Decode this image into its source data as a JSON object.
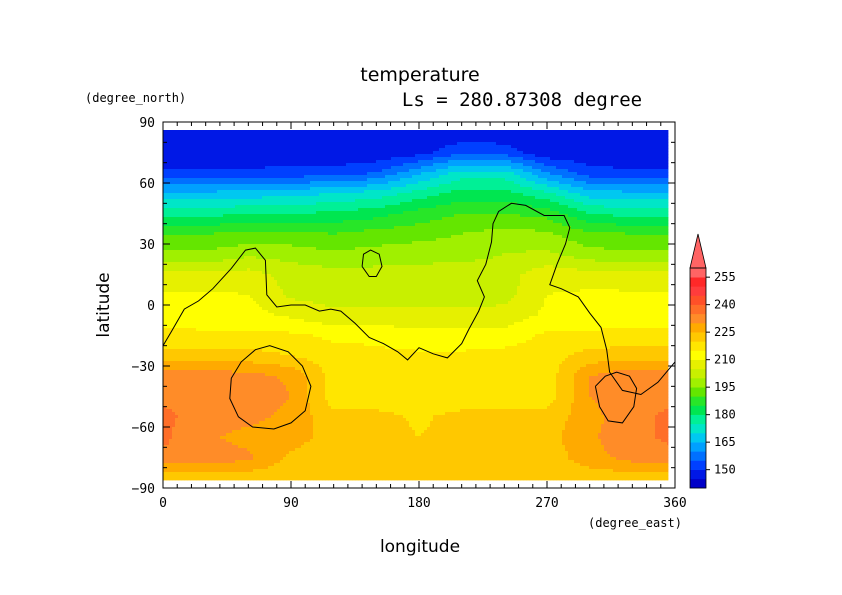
{
  "chart_data": {
    "type": "heatmap",
    "title": "temperature",
    "subtitle": "Ls = 280.87308 degree",
    "xlabel": "longitude",
    "ylabel": "latitude",
    "x_unit": "(degree_east)",
    "y_unit": "(degree_north)",
    "xlim": [
      0,
      360
    ],
    "ylim": [
      -90,
      90
    ],
    "x_ticks": [
      "0",
      "90",
      "180",
      "270",
      "360"
    ],
    "y_ticks": [
      "90",
      "60",
      "30",
      "0",
      "−30",
      "−60",
      "−90"
    ],
    "colorbar": {
      "labels": [
        "255",
        "240",
        "225",
        "210",
        "195",
        "180",
        "165",
        "150"
      ],
      "levels": [
        140,
        145,
        150,
        155,
        160,
        165,
        170,
        175,
        180,
        185,
        190,
        195,
        200,
        205,
        210,
        215,
        220,
        225,
        230,
        235,
        240,
        245,
        250,
        255,
        260
      ],
      "colors": [
        "#0000c8",
        "#0018e6",
        "#0040ff",
        "#0070ff",
        "#00a0ff",
        "#00c8f0",
        "#00e6c8",
        "#00f096",
        "#00e650",
        "#28e628",
        "#64e600",
        "#a0f000",
        "#c8f000",
        "#e6f000",
        "#ffff00",
        "#ffe600",
        "#ffc800",
        "#ffaa00",
        "#ff8c28",
        "#ff6e28",
        "#ff5028",
        "#ff3c3c",
        "#ff2828",
        "#ff6464"
      ]
    },
    "data_lon": [
      0,
      30,
      60,
      90,
      120,
      150,
      180,
      210,
      240,
      270,
      300,
      330,
      360
    ],
    "data_lat": [
      -85,
      -75,
      -65,
      -55,
      -45,
      -35,
      -25,
      -15,
      -5,
      5,
      15,
      25,
      35,
      45,
      55,
      65,
      75,
      85
    ],
    "values": [
      [
        222,
        222,
        222,
        222,
        222,
        222,
        222,
        222,
        222,
        222,
        222,
        222,
        222
      ],
      [
        234,
        234,
        231,
        224,
        222,
        222,
        222,
        222,
        222,
        222,
        228,
        232,
        234
      ],
      [
        236,
        231,
        228,
        227,
        223,
        222,
        220,
        222,
        222,
        223,
        229,
        234,
        236
      ],
      [
        236,
        233,
        232,
        228,
        222,
        222,
        219,
        222,
        222,
        222,
        228,
        234,
        236
      ],
      [
        234,
        234,
        234,
        230,
        217,
        216,
        216,
        216,
        216,
        217,
        230,
        234,
        234
      ],
      [
        233,
        233,
        232,
        229,
        218,
        216,
        216,
        216,
        216,
        217,
        230,
        234,
        233
      ],
      [
        222,
        222,
        222,
        220,
        217,
        216,
        216,
        216,
        217,
        218,
        222,
        223,
        222
      ],
      [
        217,
        216,
        216,
        216,
        214,
        214,
        212,
        212,
        212,
        216,
        216,
        217,
        217
      ],
      [
        212,
        212,
        212,
        209,
        206,
        206,
        206,
        206,
        207,
        211,
        212,
        212,
        212
      ],
      [
        211,
        211,
        210,
        204,
        203,
        203,
        203,
        203,
        203,
        210,
        211,
        211,
        211
      ],
      [
        206,
        206,
        207,
        203,
        202,
        202,
        202,
        203,
        203,
        208,
        207,
        206,
        206
      ],
      [
        196,
        196,
        199,
        198,
        196,
        197,
        198,
        198,
        200,
        201,
        197,
        196,
        196
      ],
      [
        190,
        190,
        191,
        191,
        190,
        192,
        193,
        195,
        197,
        196,
        191,
        190,
        190
      ],
      [
        178,
        178,
        180,
        180,
        181,
        183,
        187,
        190,
        190,
        188,
        180,
        178,
        178
      ],
      [
        166,
        166,
        167,
        168,
        170,
        172,
        177,
        182,
        182,
        176,
        167,
        166,
        166
      ],
      [
        151,
        151,
        151,
        152,
        152,
        155,
        164,
        172,
        172,
        160,
        152,
        151,
        151
      ],
      [
        146,
        146,
        146,
        146,
        146,
        146,
        148,
        154,
        153,
        146,
        146,
        146,
        146
      ],
      [
        146,
        146,
        146,
        146,
        146,
        146,
        146,
        146,
        146,
        146,
        146,
        146,
        146
      ]
    ],
    "contours": [
      {
        "name": "coastline",
        "points": [
          [
            0,
            -20
          ],
          [
            6,
            -13
          ],
          [
            15,
            -2
          ],
          [
            25,
            2
          ],
          [
            35,
            8
          ],
          [
            48,
            18
          ],
          [
            58,
            27
          ],
          [
            65,
            28
          ],
          [
            72,
            22
          ],
          [
            73,
            5
          ],
          [
            80,
            -1
          ],
          [
            90,
            0
          ],
          [
            100,
            0
          ],
          [
            110,
            -3
          ],
          [
            118,
            -2
          ],
          [
            125,
            -3
          ],
          [
            135,
            -9
          ],
          [
            145,
            -16
          ],
          [
            155,
            -19
          ],
          [
            165,
            -23
          ],
          [
            172,
            -27
          ],
          [
            180,
            -21
          ],
          [
            190,
            -24
          ],
          [
            200,
            -26
          ],
          [
            210,
            -19
          ],
          [
            215,
            -12
          ],
          [
            222,
            -3
          ],
          [
            226,
            4
          ],
          [
            221,
            12
          ],
          [
            227,
            20
          ],
          [
            231,
            31
          ],
          [
            232,
            40
          ],
          [
            236,
            46
          ],
          [
            245,
            50
          ],
          [
            255,
            49
          ],
          [
            268,
            44
          ],
          [
            282,
            44
          ],
          [
            286,
            38
          ],
          [
            283,
            30
          ],
          [
            277,
            20
          ],
          [
            272,
            10
          ],
          [
            280,
            8
          ],
          [
            292,
            4
          ],
          [
            300,
            -4
          ],
          [
            308,
            -11
          ],
          [
            312,
            -22
          ],
          [
            314,
            -33
          ],
          [
            323,
            -42
          ],
          [
            336,
            -44
          ],
          [
            348,
            -38
          ],
          [
            360,
            -28
          ]
        ]
      },
      {
        "name": "hellas-basin",
        "points": [
          [
            48,
            -36
          ],
          [
            55,
            -28
          ],
          [
            65,
            -22
          ],
          [
            75,
            -20
          ],
          [
            88,
            -23
          ],
          [
            98,
            -30
          ],
          [
            104,
            -40
          ],
          [
            100,
            -52
          ],
          [
            90,
            -58
          ],
          [
            78,
            -61
          ],
          [
            63,
            -60
          ],
          [
            53,
            -55
          ],
          [
            47,
            -46
          ],
          [
            48,
            -36
          ]
        ]
      },
      {
        "name": "argyre-basin",
        "points": [
          [
            304,
            -40
          ],
          [
            311,
            -35
          ],
          [
            319,
            -33
          ],
          [
            328,
            -35
          ],
          [
            333,
            -41
          ],
          [
            331,
            -50
          ],
          [
            323,
            -58
          ],
          [
            313,
            -57
          ],
          [
            307,
            -50
          ],
          [
            304,
            -40
          ]
        ]
      },
      {
        "name": "small-island",
        "points": [
          [
            140,
            19
          ],
          [
            141,
            25
          ],
          [
            146,
            27
          ],
          [
            152,
            25
          ],
          [
            154,
            19
          ],
          [
            150,
            14
          ],
          [
            145,
            14
          ],
          [
            140,
            19
          ]
        ]
      }
    ]
  }
}
